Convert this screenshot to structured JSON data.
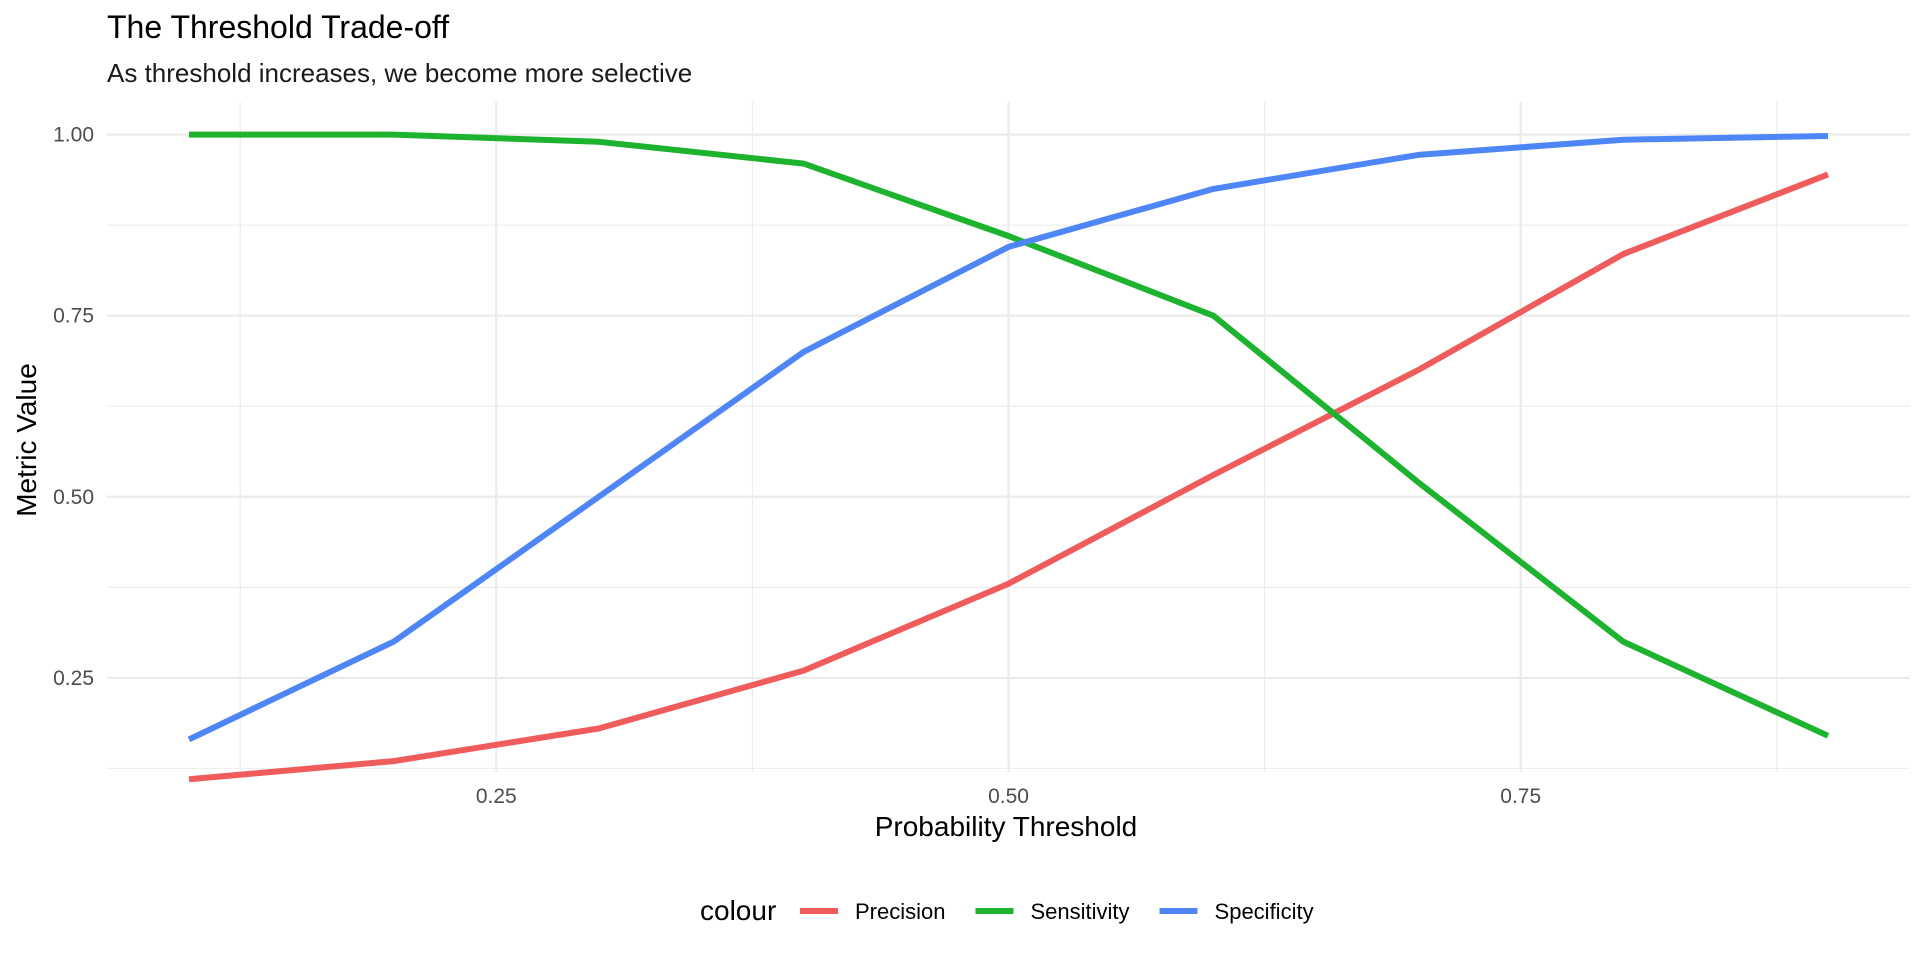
{
  "chart_data": {
    "type": "line",
    "title": "The Threshold Trade-off",
    "subtitle": "As threshold increases, we become more selective",
    "xlabel": "Probability Threshold",
    "ylabel": "Metric Value",
    "x": [
      0.1,
      0.2,
      0.3,
      0.4,
      0.5,
      0.6,
      0.7,
      0.8,
      0.9
    ],
    "xlim": [
      0.06,
      0.94
    ],
    "ylim": [
      0.12,
      1.045
    ],
    "x_ticks": [
      0.25,
      0.5,
      0.75
    ],
    "x_tick_labels": [
      "0.25",
      "0.50",
      "0.75"
    ],
    "x_minor_ticks": [
      0.125,
      0.375,
      0.625,
      0.875
    ],
    "y_ticks": [
      0.25,
      0.5,
      0.75,
      1.0
    ],
    "y_tick_labels": [
      "0.25",
      "0.50",
      "0.75",
      "1.00"
    ],
    "y_minor_ticks": [
      0.125,
      0.375,
      0.625,
      0.875
    ],
    "grid": true,
    "legend": {
      "title": "colour",
      "position": "bottom"
    },
    "series": [
      {
        "name": "Precision",
        "color": "#f05b5b",
        "values": [
          0.11,
          0.135,
          0.18,
          0.26,
          0.38,
          0.53,
          0.675,
          0.835,
          0.945
        ]
      },
      {
        "name": "Sensitivity",
        "color": "#1db32e",
        "values": [
          1.0,
          1.0,
          0.99,
          0.96,
          0.86,
          0.75,
          0.52,
          0.3,
          0.17
        ]
      },
      {
        "name": "Specificity",
        "color": "#4f86f7",
        "values": [
          0.165,
          0.3,
          0.5,
          0.7,
          0.845,
          0.925,
          0.972,
          0.993,
          0.998
        ]
      }
    ]
  }
}
